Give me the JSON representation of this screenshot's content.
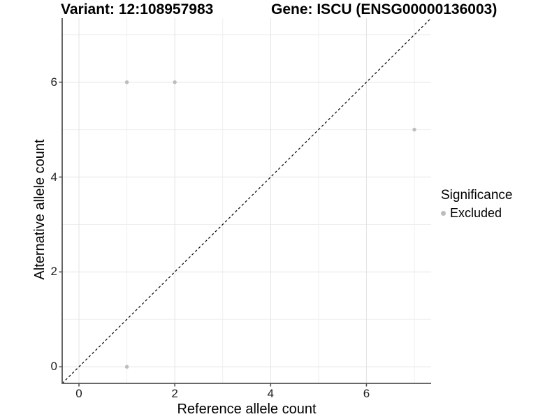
{
  "header": {
    "variant_title": "Variant: 12:108957983",
    "gene_title": "Gene: ISCU (ENSG00000136003)"
  },
  "legend": {
    "title": "Significance",
    "items": [
      {
        "label": "Excluded",
        "marker": "dot-icon",
        "color": "#bdbdbd"
      }
    ],
    "position": "right"
  },
  "colors": {
    "point": "#bdbdbd",
    "identity_line": "#000000",
    "axis_line": "#545454",
    "tick_mark": "#545454",
    "grid_major": "#e3e3e3",
    "grid_minor": "#efefef",
    "background": "#ffffff"
  },
  "chart_data": {
    "type": "scatter",
    "title": "Variant: 12:108957983    Gene: ISCU (ENSG00000136003)",
    "xlabel": "Reference allele count",
    "ylabel": "Alternative allele count",
    "xlim": [
      -0.35,
      7.35
    ],
    "ylim": [
      -0.35,
      7.35
    ],
    "x_ticks": [
      0,
      2,
      4,
      6
    ],
    "y_ticks": [
      0,
      2,
      4,
      6
    ],
    "x_minor": [
      1,
      3,
      5,
      7
    ],
    "y_minor": [
      1,
      3,
      5,
      7
    ],
    "grid": true,
    "legend_position": "right",
    "series": [
      {
        "name": "Excluded",
        "color": "#bdbdbd",
        "points": [
          [
            1,
            6
          ],
          [
            2,
            6
          ],
          [
            7,
            5
          ],
          [
            1,
            0
          ]
        ]
      }
    ],
    "reference_line": {
      "style": "dashed",
      "slope": 1,
      "intercept": 0,
      "color": "#000000"
    }
  }
}
